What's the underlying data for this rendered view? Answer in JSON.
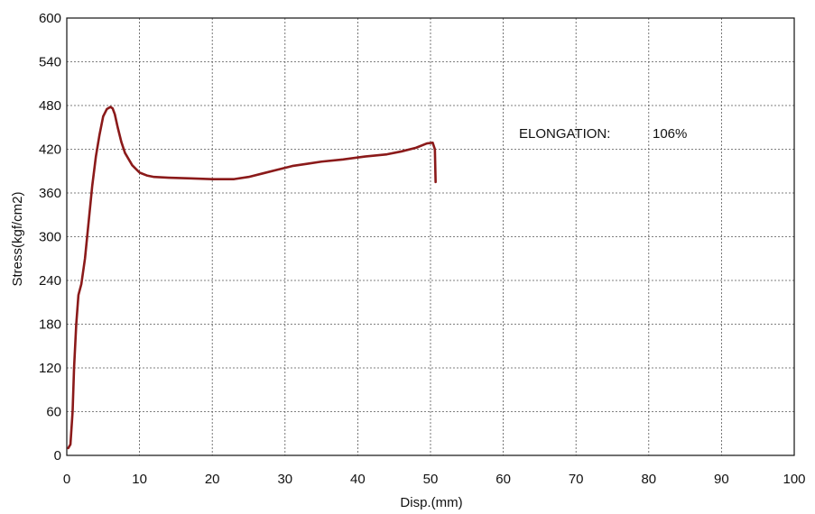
{
  "chart_data": {
    "type": "line",
    "title": "",
    "xlabel": "Disp.(mm)",
    "ylabel": "Stress(kgf/cm2)",
    "xlim": [
      0,
      100
    ],
    "ylim": [
      0,
      600
    ],
    "x_ticks": [
      0,
      10,
      20,
      30,
      40,
      50,
      60,
      70,
      80,
      90,
      100
    ],
    "y_ticks": [
      0,
      60,
      120,
      180,
      240,
      300,
      360,
      420,
      480,
      540,
      600
    ],
    "grid": true,
    "line_color": "#8b1a1a",
    "annotation": {
      "label": "ELONGATION:",
      "value": "106%"
    },
    "series": [
      {
        "x": [
          0.2,
          0.5,
          0.8,
          1.0,
          1.3,
          1.6,
          2.0,
          2.5,
          3.0,
          3.5,
          4.0,
          4.5,
          5.0,
          5.5,
          6.0,
          6.3,
          6.6,
          7.0,
          7.5,
          8.0,
          9.0,
          10.0,
          11.0,
          12.0,
          14.0,
          17.0,
          20.0,
          23.0,
          25.0,
          27.0,
          29.0,
          31.0,
          33.0,
          35.0,
          38.0,
          41.0,
          44.0,
          46.0,
          48.0,
          49.5,
          50.3,
          50.6,
          50.7
        ],
        "y": [
          10,
          15,
          60,
          120,
          180,
          220,
          235,
          270,
          320,
          370,
          410,
          440,
          465,
          475,
          478,
          476,
          468,
          450,
          430,
          415,
          398,
          388,
          384,
          382,
          381,
          380,
          379,
          379,
          382,
          387,
          392,
          397,
          400,
          403,
          406,
          410,
          413,
          417,
          422,
          428,
          429,
          420,
          375
        ]
      }
    ]
  }
}
